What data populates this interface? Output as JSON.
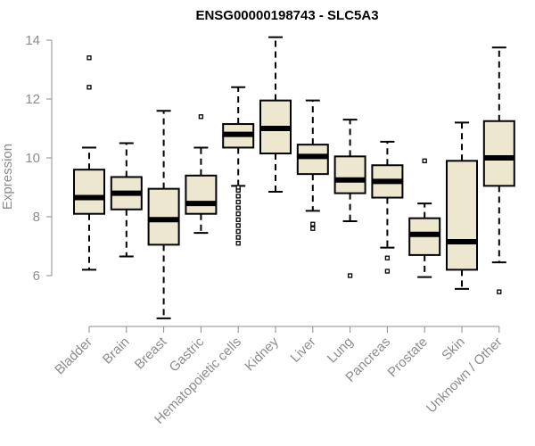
{
  "chart_data": {
    "type": "boxplot",
    "title": "ENSG00000198743 - SLC5A3",
    "xlabel": "",
    "ylabel": "Expression",
    "ylim": [
      4.5,
      14.2
    ],
    "yticks": [
      6,
      8,
      10,
      12,
      14
    ],
    "grid": false,
    "categories": [
      "Bladder",
      "Brain",
      "Breast",
      "Gastric",
      "Hematopoietic cells",
      "Kidney",
      "Liver",
      "Lung",
      "Pancreas",
      "Prostate",
      "Skin",
      "Unknown / Other"
    ],
    "series": [
      {
        "name": "Bladder",
        "whisker_low": 6.2,
        "q1": 8.1,
        "median": 8.65,
        "q3": 9.6,
        "whisker_high": 10.35,
        "outliers": [
          12.4,
          13.4
        ]
      },
      {
        "name": "Brain",
        "whisker_low": 6.65,
        "q1": 8.25,
        "median": 8.8,
        "q3": 9.35,
        "whisker_high": 10.5,
        "outliers": []
      },
      {
        "name": "Breast",
        "whisker_low": 4.55,
        "q1": 7.05,
        "median": 7.9,
        "q3": 8.95,
        "whisker_high": 11.6,
        "outliers": []
      },
      {
        "name": "Gastric",
        "whisker_low": 7.45,
        "q1": 8.1,
        "median": 8.45,
        "q3": 9.4,
        "whisker_high": 10.35,
        "outliers": [
          11.4
        ]
      },
      {
        "name": "Hematopoietic cells",
        "whisker_low": 9.05,
        "q1": 10.35,
        "median": 10.8,
        "q3": 11.15,
        "whisker_high": 12.4,
        "outliers": [
          7.1,
          7.3,
          7.5,
          7.7,
          7.9,
          8.1,
          8.3,
          8.5,
          8.7,
          8.9,
          9.0
        ]
      },
      {
        "name": "Kidney",
        "whisker_low": 8.85,
        "q1": 10.15,
        "median": 11.0,
        "q3": 11.95,
        "whisker_high": 14.1,
        "outliers": []
      },
      {
        "name": "Liver",
        "whisker_low": 8.2,
        "q1": 9.45,
        "median": 10.05,
        "q3": 10.45,
        "whisker_high": 11.95,
        "outliers": [
          7.6,
          7.75
        ]
      },
      {
        "name": "Lung",
        "whisker_low": 7.85,
        "q1": 8.8,
        "median": 9.25,
        "q3": 10.05,
        "whisker_high": 11.3,
        "outliers": [
          6.0
        ]
      },
      {
        "name": "Pancreas",
        "whisker_low": 6.95,
        "q1": 8.65,
        "median": 9.2,
        "q3": 9.75,
        "whisker_high": 10.55,
        "outliers": [
          6.15,
          6.6
        ]
      },
      {
        "name": "Prostate",
        "whisker_low": 5.95,
        "q1": 6.7,
        "median": 7.4,
        "q3": 7.95,
        "whisker_high": 8.45,
        "outliers": [
          9.9
        ]
      },
      {
        "name": "Skin",
        "whisker_low": 5.55,
        "q1": 6.2,
        "median": 7.15,
        "q3": 9.9,
        "whisker_high": 11.2,
        "outliers": []
      },
      {
        "name": "Unknown / Other",
        "whisker_low": 6.45,
        "q1": 9.05,
        "median": 10.0,
        "q3": 11.25,
        "whisker_high": 13.75,
        "outliers": [
          5.45
        ]
      }
    ],
    "box_fill": "#ede7d0",
    "box_stroke": "#000000",
    "axis_color": "#8c8c8c"
  }
}
